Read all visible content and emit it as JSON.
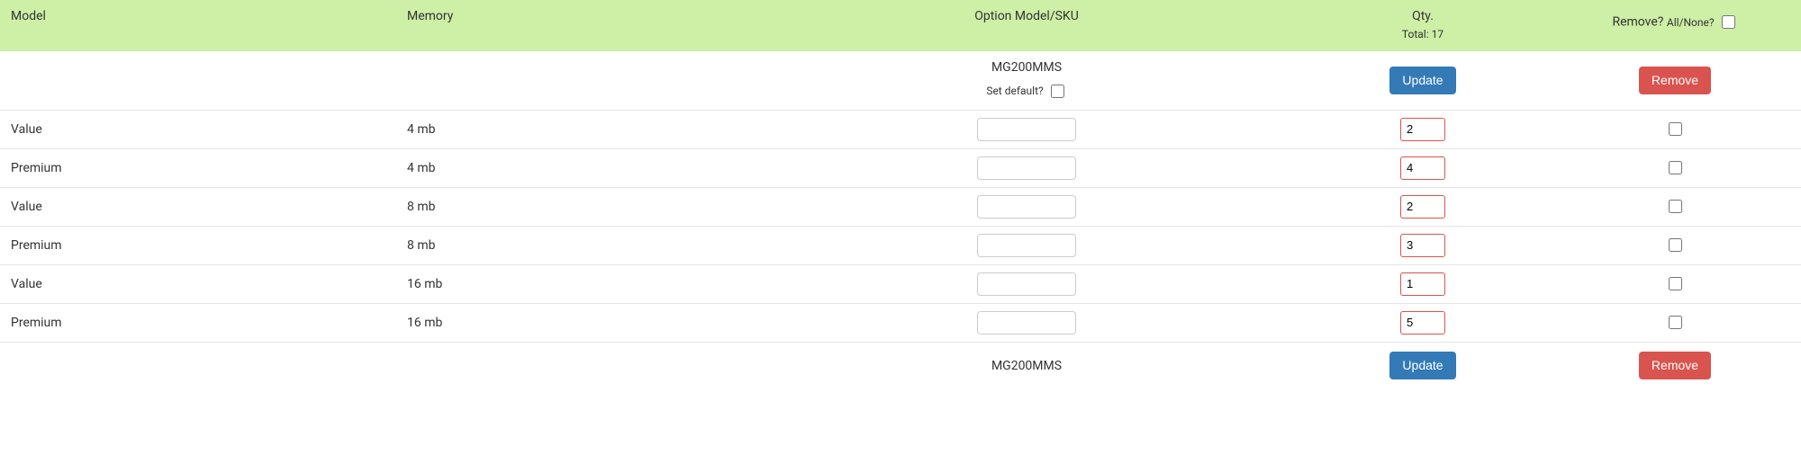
{
  "colors": {
    "header_bg": "#CDEFA6",
    "btn_primary": "#337ab7",
    "btn_danger": "#d9534f",
    "row_border": "#e5e5e5",
    "input_border": "#cccccc",
    "qty_border": "#d9534f",
    "text": "#333333"
  },
  "header": {
    "model": "Model",
    "memory": "Memory",
    "sku": "Option Model/SKU",
    "qty": "Qty.",
    "qty_total_label": "Total: 17",
    "remove": "Remove?",
    "all_none_label": "All/None?",
    "all_none_checked": false
  },
  "top_actions": {
    "sku_value": "MG200MMS",
    "set_default_label": "Set default?",
    "set_default_checked": false,
    "update_label": "Update",
    "remove_label": "Remove"
  },
  "rows": [
    {
      "model": "Value",
      "memory": "4 mb",
      "sku": "",
      "qty": "2",
      "remove_checked": false
    },
    {
      "model": "Premium",
      "memory": "4 mb",
      "sku": "",
      "qty": "4",
      "remove_checked": false
    },
    {
      "model": "Value",
      "memory": "8 mb",
      "sku": "",
      "qty": "2",
      "remove_checked": false
    },
    {
      "model": "Premium",
      "memory": "8 mb",
      "sku": "",
      "qty": "3",
      "remove_checked": false
    },
    {
      "model": "Value",
      "memory": "16 mb",
      "sku": "",
      "qty": "1",
      "remove_checked": false
    },
    {
      "model": "Premium",
      "memory": "16 mb",
      "sku": "",
      "qty": "5",
      "remove_checked": false
    }
  ],
  "bottom_actions": {
    "sku_value": "MG200MMS",
    "update_label": "Update",
    "remove_label": "Remove"
  }
}
